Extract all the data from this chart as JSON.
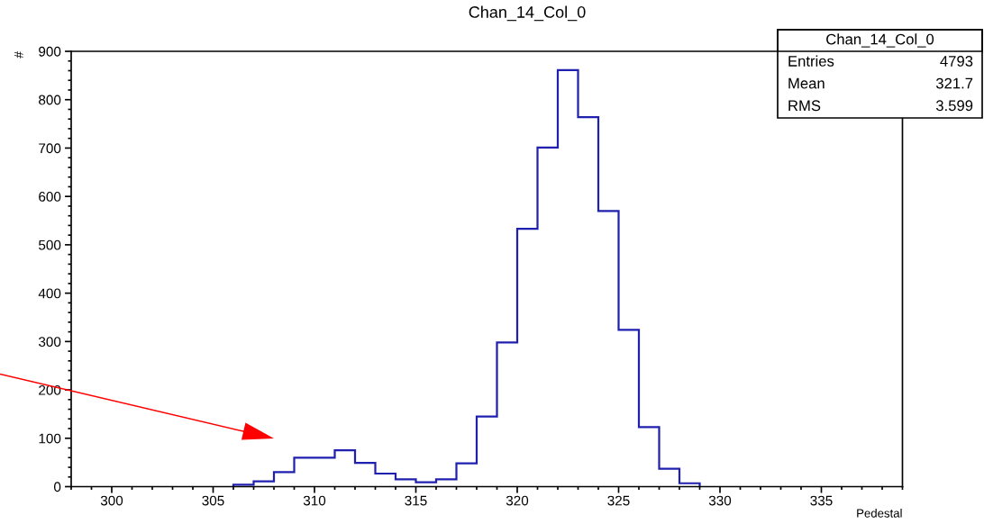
{
  "chart_data": {
    "type": "histogram",
    "title": "Chan_14_Col_0",
    "xlabel": "Pedestal",
    "ylabel": "#",
    "bins": [
      306,
      307,
      308,
      309,
      310,
      311,
      312,
      313,
      314,
      315,
      316,
      317,
      318,
      319,
      320,
      321,
      322,
      323,
      324,
      325,
      326,
      327,
      328,
      329
    ],
    "values": [
      4,
      11,
      30,
      60,
      60,
      75,
      49,
      27,
      15,
      9,
      15,
      48,
      145,
      298,
      533,
      701,
      861,
      764,
      570,
      324,
      123,
      37,
      7
    ],
    "color": "#2020b0",
    "xlim": [
      298,
      339
    ],
    "ylim": [
      0,
      900
    ],
    "xticks": [
      300,
      305,
      310,
      315,
      320,
      325,
      330,
      335
    ],
    "yticks": [
      0,
      100,
      200,
      300,
      400,
      500,
      600,
      700,
      800,
      900
    ],
    "grid": false,
    "annotations": [
      "Chan_14_Col_0",
      "Entries",
      "4793",
      "Mean",
      "321.7",
      "RMS",
      "3.599"
    ]
  }
}
